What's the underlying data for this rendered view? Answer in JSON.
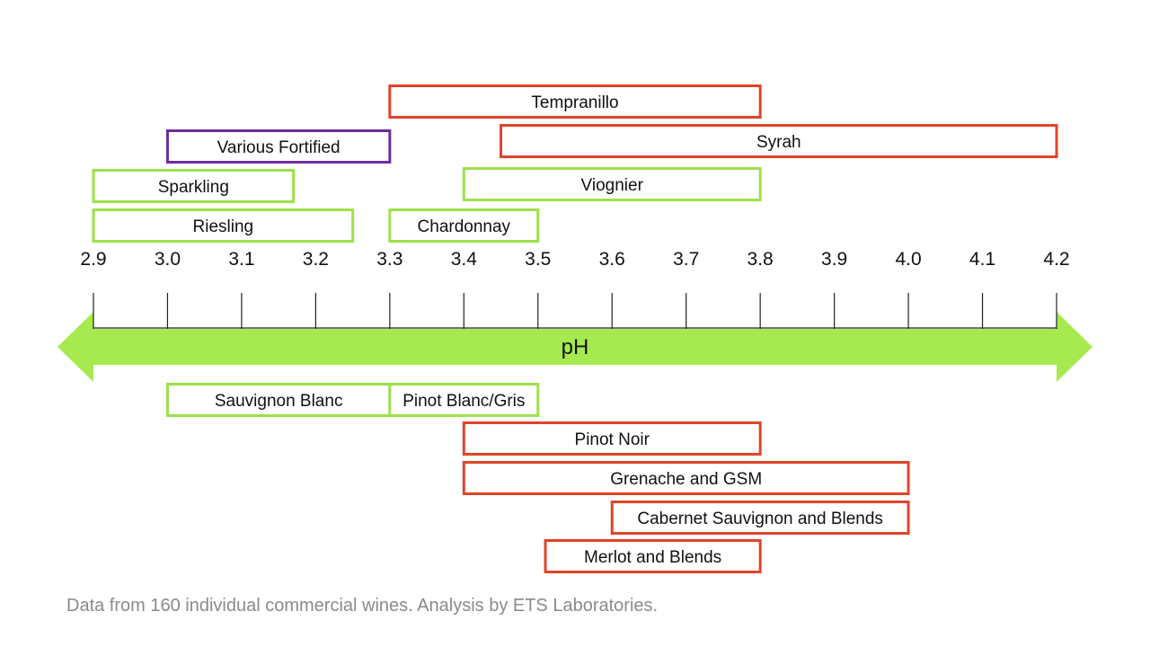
{
  "chart_data": {
    "type": "range-bar",
    "axis": {
      "label": "pH",
      "min": 2.9,
      "max": 4.2,
      "ticks": [
        "2.9",
        "3.0",
        "3.1",
        "3.2",
        "3.3",
        "3.4",
        "3.5",
        "3.6",
        "3.7",
        "3.8",
        "3.9",
        "4.0",
        "4.1",
        "4.2"
      ]
    },
    "colors": {
      "arrow": "#a6ea4f",
      "white": "#9ee04a",
      "red": "#e0442a",
      "fortified": "#6a2ca0"
    },
    "ranges_above": [
      {
        "name": "Tempranillo",
        "min": 3.3,
        "max": 3.8,
        "color": "red"
      },
      {
        "name": "Syrah",
        "min": 3.45,
        "max": 4.2,
        "color": "red"
      },
      {
        "name": "Various Fortified",
        "min": 3.0,
        "max": 3.3,
        "color": "fortified"
      },
      {
        "name": "Sparkling",
        "min": 2.9,
        "max": 3.17,
        "color": "white"
      },
      {
        "name": "Viognier",
        "min": 3.4,
        "max": 3.8,
        "color": "white"
      },
      {
        "name": "Riesling",
        "min": 2.9,
        "max": 3.25,
        "color": "white"
      },
      {
        "name": "Chardonnay",
        "min": 3.3,
        "max": 3.5,
        "color": "white"
      }
    ],
    "ranges_below": [
      {
        "name": "Sauvignon Blanc",
        "min": 3.0,
        "max": 3.3,
        "color": "white"
      },
      {
        "name": "Pinot Blanc/Gris",
        "min": 3.3,
        "max": 3.5,
        "color": "white"
      },
      {
        "name": "Pinot Noir",
        "min": 3.4,
        "max": 3.8,
        "color": "red"
      },
      {
        "name": "Grenache and GSM",
        "min": 3.4,
        "max": 4.0,
        "color": "red"
      },
      {
        "name": "Cabernet Sauvignon and Blends",
        "min": 3.6,
        "max": 4.0,
        "color": "red"
      },
      {
        "name": "Merlot and Blends",
        "min": 3.51,
        "max": 3.8,
        "color": "red"
      }
    ]
  },
  "caption": "Data from 160 individual commercial wines. Analysis by ETS Laboratories."
}
